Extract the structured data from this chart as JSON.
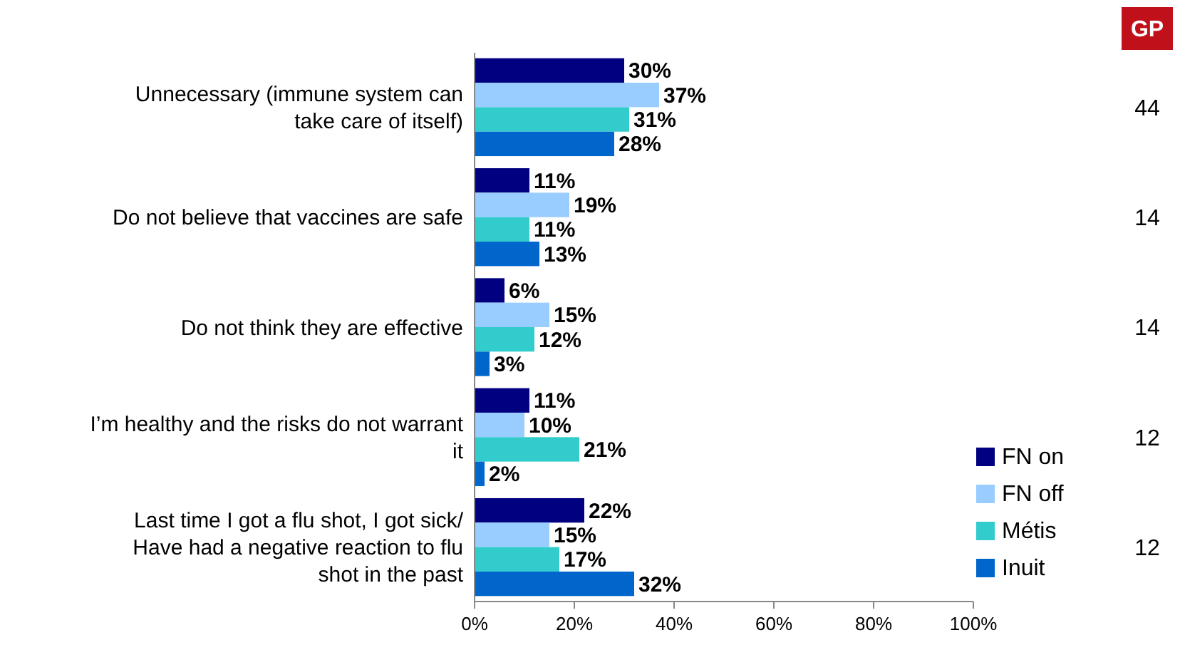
{
  "chart_data": {
    "type": "bar",
    "orientation": "horizontal",
    "categories": [
      "Unnecessary (immune system can take care of itself)",
      "Do not believe that vaccines are safe",
      "Do not think they are effective",
      "I’m healthy and the risks do not warrant it",
      "Last time I got a flu shot, I got sick/ Have had a negative reaction to flu shot in the past"
    ],
    "series": [
      {
        "name": "FN on",
        "color": "#000080",
        "values": [
          30,
          11,
          6,
          11,
          22
        ],
        "value_labels": [
          "30%",
          "11%",
          "6%",
          "11%",
          "22%"
        ]
      },
      {
        "name": "FN off",
        "color": "#99ccff",
        "values": [
          37,
          19,
          15,
          10,
          15
        ],
        "value_labels": [
          "37%",
          "19%",
          "15%",
          "10%",
          "15%"
        ]
      },
      {
        "name": "Métis",
        "color": "#33cccc",
        "values": [
          31,
          11,
          12,
          21,
          17
        ],
        "value_labels": [
          "31%",
          "11%",
          "12%",
          "21%",
          "17%"
        ]
      },
      {
        "name": "Inuit",
        "color": "#0066cc",
        "values": [
          28,
          13,
          3,
          2,
          32
        ],
        "value_labels": [
          "28%",
          "13%",
          "3%",
          "2%",
          "32%"
        ]
      }
    ],
    "xlim": [
      0,
      100
    ],
    "xticks": [
      {
        "value": 0,
        "label": "0%"
      },
      {
        "value": 20,
        "label": "20%"
      },
      {
        "value": 40,
        "label": "40%"
      },
      {
        "value": 60,
        "label": "60%"
      },
      {
        "value": 80,
        "label": "80%"
      },
      {
        "value": 100,
        "label": "100%"
      }
    ],
    "legend": "bottom right",
    "grid": false,
    "annotations": [
      "GP",
      "44",
      "14",
      "14",
      "12",
      "12"
    ]
  }
}
